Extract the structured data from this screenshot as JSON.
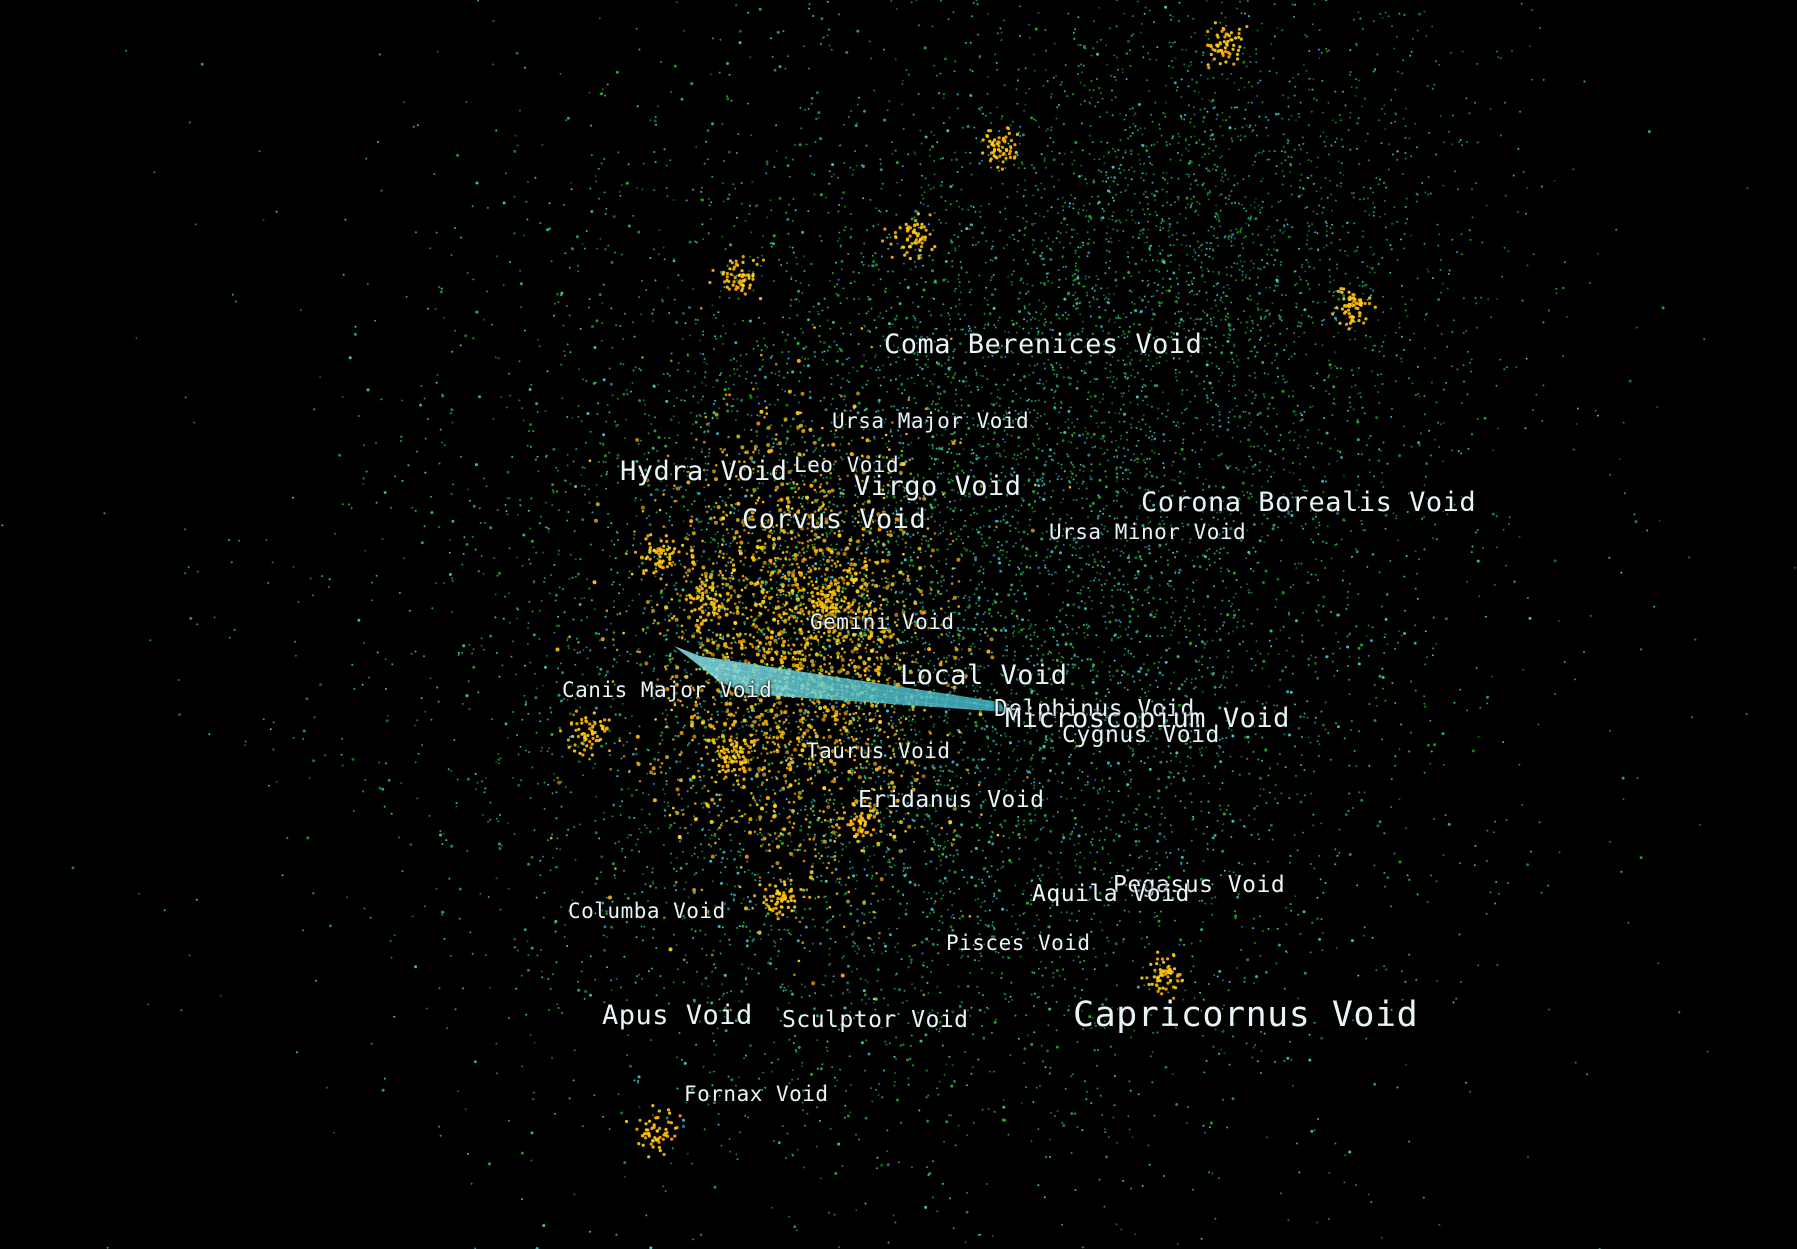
{
  "colors": {
    "background": "#000000",
    "label": "#e9f4f6",
    "galaxy_cyan": "#3fd6d6",
    "galaxy_green": "#22c22a",
    "galaxy_yellow": "#ffd11a",
    "galaxy_orange": "#ffb000",
    "local_void_plane": "#5fd0dc"
  },
  "voids": [
    {
      "name": "Coma Berenices Void"
    },
    {
      "name": "Ursa Major Void"
    },
    {
      "name": "Hydra Void"
    },
    {
      "name": "Leo Void"
    },
    {
      "name": "Virgo Void"
    },
    {
      "name": "Corona Borealis Void"
    },
    {
      "name": "Corvus Void"
    },
    {
      "name": "Ursa Minor Void"
    },
    {
      "name": "Gemini Void"
    },
    {
      "name": "Local Void"
    },
    {
      "name": "Canis Major Void"
    },
    {
      "name": "Delphinus Void"
    },
    {
      "name": "Microscopium Void"
    },
    {
      "name": "Cygnus Void"
    },
    {
      "name": "Taurus Void"
    },
    {
      "name": "Eridanus Void"
    },
    {
      "name": "Pegasus Void"
    },
    {
      "name": "Aquila Void"
    },
    {
      "name": "Columba Void"
    },
    {
      "name": "Pisces Void"
    },
    {
      "name": "Apus Void"
    },
    {
      "name": "Sculptor Void"
    },
    {
      "name": "Capricornus Void"
    },
    {
      "name": "Fornax Void"
    }
  ]
}
